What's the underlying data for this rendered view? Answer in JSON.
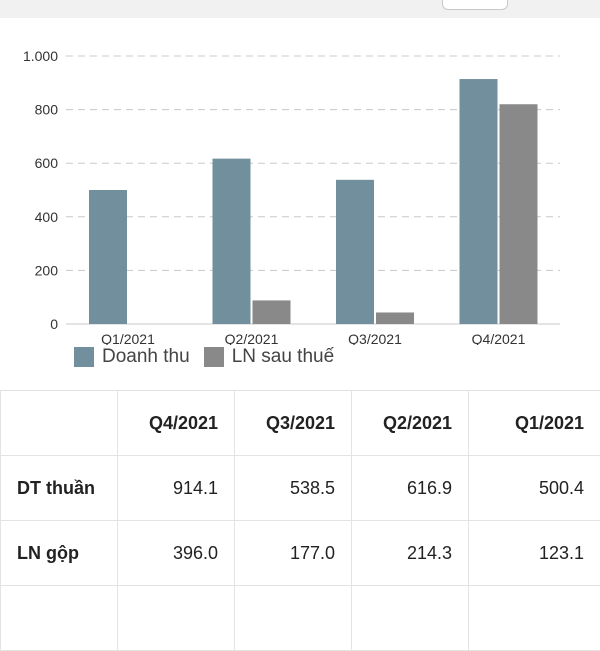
{
  "chart_data": {
    "type": "bar",
    "categories": [
      "Q1/2021",
      "Q2/2021",
      "Q3/2021",
      "Q4/2021"
    ],
    "series": [
      {
        "name": "Doanh thu",
        "color": "#718f9c",
        "values": [
          500,
          617,
          538,
          914
        ]
      },
      {
        "name": "LN sau thuế",
        "color": "#898989",
        "values": [
          0,
          88,
          43,
          820
        ]
      }
    ],
    "ylim": [
      0,
      1000
    ],
    "yticks": [
      0,
      200,
      400,
      600,
      800,
      1000
    ],
    "ytick_labels": [
      "0",
      "200",
      "400",
      "600",
      "800",
      "1.000"
    ],
    "grid": true,
    "legend": "bottom-left"
  },
  "table": {
    "headers": [
      "",
      "Q4/2021",
      "Q3/2021",
      "Q2/2021",
      "Q1/2021"
    ],
    "rows": [
      {
        "label": "DT thuần",
        "values": [
          "914.1",
          "538.5",
          "616.9",
          "500.4"
        ]
      },
      {
        "label": "LN gộp",
        "values": [
          "396.0",
          "177.0",
          "214.3",
          "123.1"
        ]
      }
    ]
  }
}
